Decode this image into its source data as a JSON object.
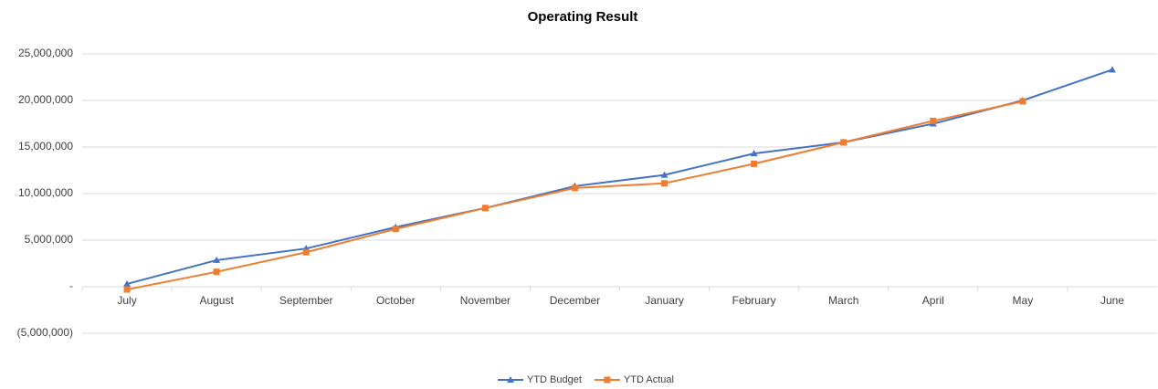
{
  "chart_data": {
    "type": "line",
    "title": "Operating Result",
    "categories": [
      "July",
      "August",
      "September",
      "October",
      "November",
      "December",
      "January",
      "February",
      "March",
      "April",
      "May",
      "June"
    ],
    "series": [
      {
        "name": "YTD Budget",
        "color": "#4472c4",
        "marker": "triangle",
        "values": [
          300000,
          2850000,
          4100000,
          6400000,
          8450000,
          10800000,
          12000000,
          14300000,
          15500000,
          17500000,
          20000000,
          23300000
        ]
      },
      {
        "name": "YTD Actual",
        "color": "#ed7d31",
        "marker": "square",
        "values": [
          -300000,
          1600000,
          3700000,
          6200000,
          8450000,
          10600000,
          11100000,
          13200000,
          15500000,
          17800000,
          19900000,
          null
        ]
      }
    ],
    "ylim": [
      -5000000,
      25000000
    ],
    "yticks": [
      {
        "value": -5000000,
        "label": "(5,000,000)"
      },
      {
        "value": 0,
        "label": "-"
      },
      {
        "value": 5000000,
        "label": "5,000,000"
      },
      {
        "value": 10000000,
        "label": "10,000,000"
      },
      {
        "value": 15000000,
        "label": "15,000,000"
      },
      {
        "value": 20000000,
        "label": "20,000,000"
      },
      {
        "value": 25000000,
        "label": "25,000,000"
      }
    ],
    "grid": true,
    "legend": "bottom"
  }
}
